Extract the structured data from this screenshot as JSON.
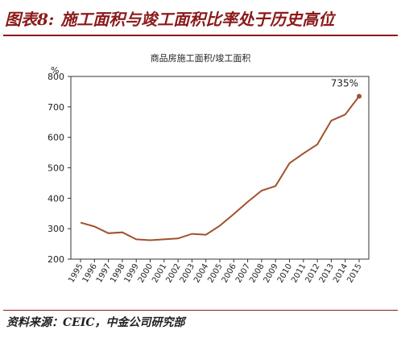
{
  "figure": {
    "label": "图表8:",
    "title": "施工面积与竣工面积比率处于历史高位"
  },
  "source_text": "资料来源：CEIC，中金公司研究部",
  "chart_data": {
    "type": "line",
    "title": "商品房施工面积/竣工面积",
    "ylabel": "%",
    "xlabel": "",
    "ylim": [
      200,
      800
    ],
    "yticks": [
      200,
      300,
      400,
      500,
      600,
      700,
      800
    ],
    "x": [
      "1995",
      "1996",
      "1997",
      "1998",
      "1999",
      "2000",
      "2001",
      "2002",
      "2003",
      "2004",
      "2005",
      "2006",
      "2007",
      "2008",
      "2009",
      "2010",
      "2011",
      "2012",
      "2013",
      "2014",
      "2015"
    ],
    "series": [
      {
        "values": [
          320,
          307,
          285,
          288,
          265,
          262,
          265,
          268,
          283,
          280,
          310,
          348,
          388,
          425,
          440,
          515,
          547,
          577,
          655,
          675,
          735
        ]
      }
    ],
    "annotation": {
      "text": "735%",
      "x": "2015"
    },
    "grid": false,
    "line_color": "#A0522D"
  }
}
